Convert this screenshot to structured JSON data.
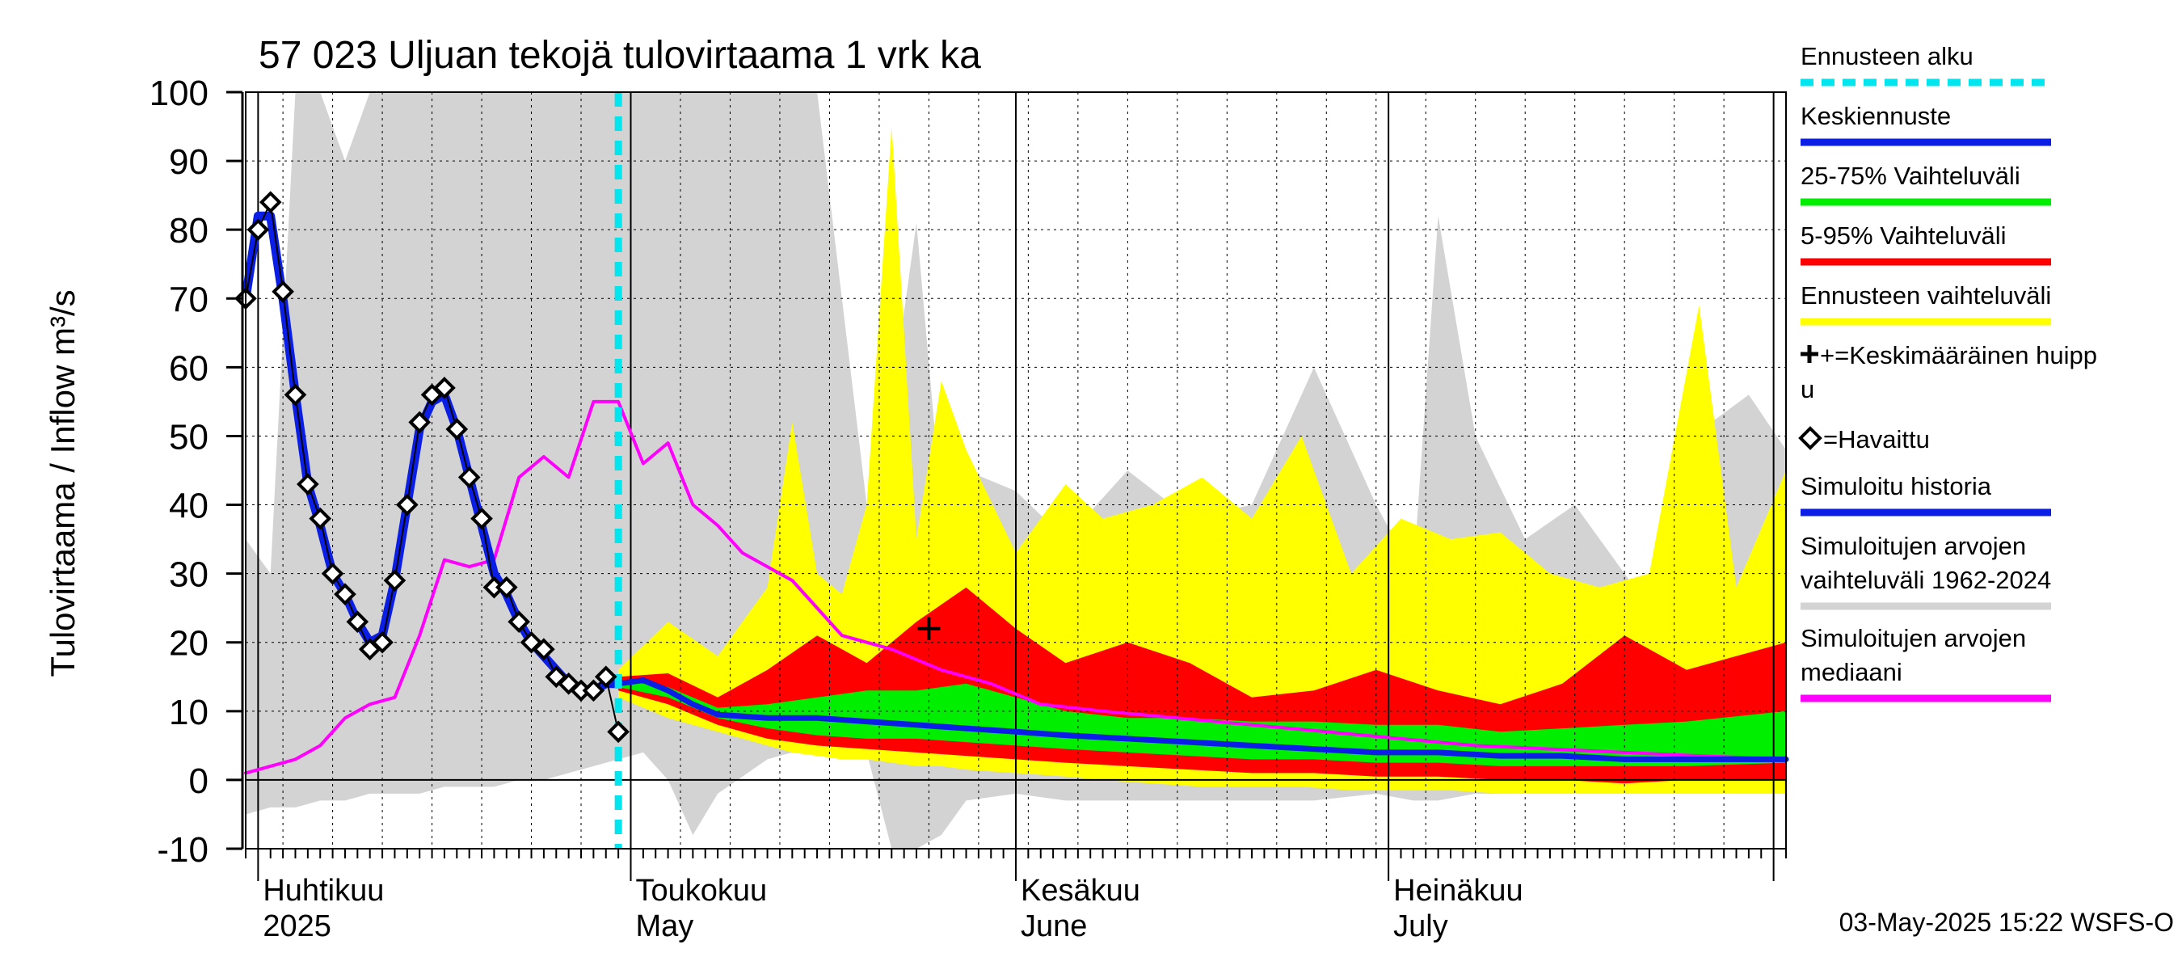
{
  "chart_data": {
    "type": "area",
    "title": "57 023 Uljuan tekojä tulovirtaama 1 vrk ka",
    "ylabel": "Tulovirtaama / Inflow   m³/s",
    "ylim": [
      -10,
      100
    ],
    "yticks": [
      -10,
      0,
      10,
      20,
      30,
      40,
      50,
      60,
      70,
      80,
      90,
      100
    ],
    "xlim": [
      "2025-03-31",
      "2025-08-02"
    ],
    "grid": true,
    "legend_position": "right",
    "month_labels": [
      {
        "date": "2025-04-01",
        "fi": "Huhtikuu",
        "en": "2025"
      },
      {
        "date": "2025-05-01",
        "fi": "Toukokuu",
        "en": "May"
      },
      {
        "date": "2025-06-01",
        "fi": "Kesäkuu",
        "en": "June"
      },
      {
        "date": "2025-07-01",
        "fi": "Heinäkuu",
        "en": "July"
      }
    ],
    "forecast_start": "2025-04-30",
    "timestamp": "03-May-2025 15:22 WSFS-O",
    "colors": {
      "history_band": "#d3d3d3",
      "forecast_band": "#ffff00",
      "band_5_95": "#ff0000",
      "band_25_75": "#00ee00",
      "mean_forecast": "#0a1ee6",
      "median": "#ff00ff",
      "forecast_start": "#00e5ee"
    },
    "legend": [
      {
        "label": "Ennusteen alku",
        "color": "#00e5ee",
        "style": "dashed"
      },
      {
        "label": "Keskiennuste",
        "color": "#0a1ee6",
        "style": "line"
      },
      {
        "label": "25-75% Vaihteluväli",
        "color": "#00ee00",
        "style": "line"
      },
      {
        "label": "5-95% Vaihteluväli",
        "color": "#ff0000",
        "style": "line"
      },
      {
        "label": "Ennusteen vaihteluväli",
        "color": "#ffff00",
        "style": "line"
      },
      {
        "label": "+=Keskimääräinen huipp",
        "label2": "u",
        "color": "#000000",
        "style": "cross"
      },
      {
        "label": "=Havaittu",
        "color": "#000000",
        "style": "diamond"
      },
      {
        "label": "Simuloitu historia",
        "color": "#0a1ee6",
        "style": "line"
      },
      {
        "label": "Simuloitujen arvojen",
        "label2": "vaihteluväli 1962-2024",
        "color": "#d3d3d3",
        "style": "line"
      },
      {
        "label": "Simuloitujen arvojen",
        "label2": "mediaani",
        "color": "#ff00ff",
        "style": "line"
      }
    ],
    "observed": {
      "x": [
        "2025-03-31",
        "2025-04-01",
        "2025-04-02",
        "2025-04-03",
        "2025-04-04",
        "2025-04-05",
        "2025-04-06",
        "2025-04-07",
        "2025-04-08",
        "2025-04-09",
        "2025-04-10",
        "2025-04-11",
        "2025-04-12",
        "2025-04-13",
        "2025-04-14",
        "2025-04-15",
        "2025-04-16",
        "2025-04-17",
        "2025-04-18",
        "2025-04-19",
        "2025-04-20",
        "2025-04-21",
        "2025-04-22",
        "2025-04-23",
        "2025-04-24",
        "2025-04-25",
        "2025-04-26",
        "2025-04-27",
        "2025-04-28",
        "2025-04-29",
        "2025-04-30"
      ],
      "y": [
        70,
        80,
        84,
        71,
        56,
        43,
        38,
        30,
        27,
        23,
        19,
        20,
        29,
        40,
        52,
        56,
        57,
        51,
        44,
        38,
        28,
        28,
        23,
        20,
        19,
        15,
        14,
        13,
        13,
        15,
        7
      ]
    },
    "simulated_history": {
      "x": [
        "2025-03-31",
        "2025-04-01",
        "2025-04-02",
        "2025-04-03",
        "2025-04-04",
        "2025-04-05",
        "2025-04-06",
        "2025-04-07",
        "2025-04-08",
        "2025-04-09",
        "2025-04-10",
        "2025-04-11",
        "2025-04-12",
        "2025-04-13",
        "2025-04-14",
        "2025-04-15",
        "2025-04-16",
        "2025-04-17",
        "2025-04-18",
        "2025-04-19",
        "2025-04-20",
        "2025-04-21",
        "2025-04-22",
        "2025-04-23",
        "2025-04-24",
        "2025-04-25",
        "2025-04-26",
        "2025-04-27",
        "2025-04-28",
        "2025-04-29",
        "2025-04-30"
      ],
      "y": [
        70,
        82,
        82,
        70,
        56,
        43,
        37,
        30,
        27,
        23,
        20,
        21,
        29,
        40,
        51,
        55,
        56,
        51,
        44,
        37,
        30,
        27,
        23,
        20,
        18,
        16,
        14,
        13,
        13,
        14,
        14
      ]
    },
    "mean_forecast": {
      "x": [
        "2025-04-30",
        "2025-05-02",
        "2025-05-04",
        "2025-05-06",
        "2025-05-08",
        "2025-05-12",
        "2025-05-16",
        "2025-05-20",
        "2025-05-24",
        "2025-05-28",
        "2025-06-01",
        "2025-06-05",
        "2025-06-10",
        "2025-06-15",
        "2025-06-20",
        "2025-06-25",
        "2025-06-30",
        "2025-07-05",
        "2025-07-10",
        "2025-07-15",
        "2025-07-20",
        "2025-07-25",
        "2025-08-02"
      ],
      "y": [
        14,
        14.5,
        13,
        11,
        9.5,
        9,
        9,
        8.5,
        8,
        7.5,
        7,
        6.5,
        6,
        5.5,
        5,
        4.5,
        4,
        4,
        3.5,
        3.5,
        3,
        3,
        3
      ]
    },
    "band_25_75": {
      "x": [
        "2025-04-30",
        "2025-05-04",
        "2025-05-08",
        "2025-05-12",
        "2025-05-16",
        "2025-05-20",
        "2025-05-24",
        "2025-05-28",
        "2025-06-01",
        "2025-06-05",
        "2025-06-10",
        "2025-06-15",
        "2025-06-20",
        "2025-06-25",
        "2025-06-30",
        "2025-07-05",
        "2025-07-10",
        "2025-07-15",
        "2025-07-20",
        "2025-07-25",
        "2025-08-02"
      ],
      "upper": [
        14.5,
        13.5,
        10.5,
        11,
        12,
        13,
        13,
        14,
        12,
        10,
        9,
        9,
        8.5,
        8.5,
        8,
        8,
        7,
        7.5,
        8,
        8.5,
        10
      ],
      "lower": [
        13.5,
        12,
        9,
        7.5,
        6.5,
        6,
        6,
        5.5,
        5,
        4.5,
        4,
        3.5,
        3,
        3,
        2.5,
        2.5,
        2,
        2,
        2,
        2,
        2.5
      ]
    },
    "band_5_95": {
      "x": [
        "2025-04-30",
        "2025-05-04",
        "2025-05-08",
        "2025-05-12",
        "2025-05-16",
        "2025-05-20",
        "2025-05-24",
        "2025-05-28",
        "2025-06-01",
        "2025-06-05",
        "2025-06-10",
        "2025-06-15",
        "2025-06-20",
        "2025-06-25",
        "2025-06-30",
        "2025-07-05",
        "2025-07-10",
        "2025-07-15",
        "2025-07-20",
        "2025-07-25",
        "2025-08-02"
      ],
      "upper": [
        15,
        15.5,
        12,
        16,
        21,
        17,
        23,
        28,
        22,
        17,
        20,
        17,
        12,
        13,
        16,
        13,
        11,
        14,
        21,
        16,
        20
      ],
      "lower": [
        13,
        11,
        8,
        6,
        5,
        4.5,
        4,
        3.5,
        3,
        2.5,
        2,
        1.5,
        1,
        1,
        0.5,
        0.5,
        0,
        0,
        -0.5,
        0,
        0
      ]
    },
    "forecast_range": {
      "x": [
        "2025-04-30",
        "2025-05-04",
        "2025-05-08",
        "2025-05-12",
        "2025-05-14",
        "2025-05-16",
        "2025-05-18",
        "2025-05-20",
        "2025-05-22",
        "2025-05-24",
        "2025-05-26",
        "2025-05-28",
        "2025-06-01",
        "2025-06-05",
        "2025-06-08",
        "2025-06-12",
        "2025-06-16",
        "2025-06-20",
        "2025-06-24",
        "2025-06-28",
        "2025-07-02",
        "2025-07-06",
        "2025-07-10",
        "2025-07-14",
        "2025-07-18",
        "2025-07-22",
        "2025-07-26",
        "2025-07-29",
        "2025-08-02"
      ],
      "upper": [
        16,
        23,
        18,
        28,
        52,
        30,
        27,
        40,
        95,
        35,
        58,
        48,
        33,
        43,
        38,
        40,
        44,
        38,
        50,
        30,
        38,
        35,
        36,
        30,
        28,
        30,
        69,
        28,
        45
      ],
      "lower": [
        12,
        9,
        7,
        5,
        4,
        3.5,
        3,
        3,
        2.5,
        2,
        2,
        1.5,
        1,
        0.5,
        0,
        -0.5,
        -1,
        -1,
        -1,
        -1.5,
        -1.5,
        -1.5,
        -2,
        -2,
        -2,
        -2,
        -2,
        -2,
        -2
      ]
    },
    "history_range": {
      "x": [
        "2025-03-31",
        "2025-04-02",
        "2025-04-04",
        "2025-04-06",
        "2025-04-08",
        "2025-04-10",
        "2025-04-12",
        "2025-04-14",
        "2025-04-16",
        "2025-04-18",
        "2025-04-20",
        "2025-04-22",
        "2025-04-24",
        "2025-04-26",
        "2025-04-28",
        "2025-04-30",
        "2025-05-02",
        "2025-05-04",
        "2025-05-06",
        "2025-05-08",
        "2025-05-12",
        "2025-05-16",
        "2025-05-20",
        "2025-05-22",
        "2025-05-24",
        "2025-05-26",
        "2025-05-28",
        "2025-06-01",
        "2025-06-05",
        "2025-06-10",
        "2025-06-15",
        "2025-06-20",
        "2025-06-25",
        "2025-06-30",
        "2025-07-03",
        "2025-07-05",
        "2025-07-08",
        "2025-07-12",
        "2025-07-16",
        "2025-07-20",
        "2025-07-24",
        "2025-07-27",
        "2025-07-30",
        "2025-08-02"
      ],
      "upper": [
        35,
        30,
        100,
        100,
        90,
        100,
        100,
        100,
        100,
        100,
        100,
        100,
        100,
        100,
        100,
        100,
        100,
        100,
        100,
        100,
        100,
        100,
        40,
        55,
        81,
        40,
        45,
        42,
        35,
        45,
        38,
        40,
        60,
        40,
        30,
        82,
        50,
        35,
        40,
        30,
        20,
        52,
        56,
        48
      ],
      "lower": [
        -5,
        -4,
        -4,
        -3,
        -3,
        -2,
        -2,
        -2,
        -1,
        -1,
        -1,
        0,
        0,
        1,
        2,
        3,
        4,
        0,
        -8,
        -2,
        3,
        5,
        4,
        -10,
        -10,
        -8,
        -3,
        -2,
        -3,
        -3,
        -3,
        -3,
        -3,
        -2,
        -3,
        -3,
        -2,
        -2,
        -2,
        -2,
        -2,
        -2,
        -2,
        -2
      ]
    },
    "median": {
      "x": [
        "2025-03-31",
        "2025-04-02",
        "2025-04-04",
        "2025-04-06",
        "2025-04-08",
        "2025-04-10",
        "2025-04-12",
        "2025-04-14",
        "2025-04-16",
        "2025-04-18",
        "2025-04-20",
        "2025-04-22",
        "2025-04-24",
        "2025-04-26",
        "2025-04-28",
        "2025-04-30",
        "2025-05-02",
        "2025-05-04",
        "2025-05-06",
        "2025-05-08",
        "2025-05-10",
        "2025-05-14",
        "2025-05-18",
        "2025-05-22",
        "2025-05-26",
        "2025-05-30",
        "2025-06-03",
        "2025-06-08",
        "2025-06-14",
        "2025-06-20",
        "2025-06-26",
        "2025-07-02",
        "2025-07-08",
        "2025-07-14",
        "2025-07-20",
        "2025-07-26",
        "2025-08-02"
      ],
      "y": [
        1,
        2,
        3,
        5,
        9,
        11,
        12,
        21,
        32,
        31,
        32,
        44,
        47,
        44,
        55,
        55,
        46,
        49,
        40,
        37,
        33,
        29,
        21,
        19,
        16,
        14,
        11,
        10,
        9,
        8,
        7,
        6,
        5,
        4.5,
        4,
        3.5,
        3
      ]
    },
    "mean_peak": {
      "x": "2025-05-25",
      "y": 22
    }
  }
}
